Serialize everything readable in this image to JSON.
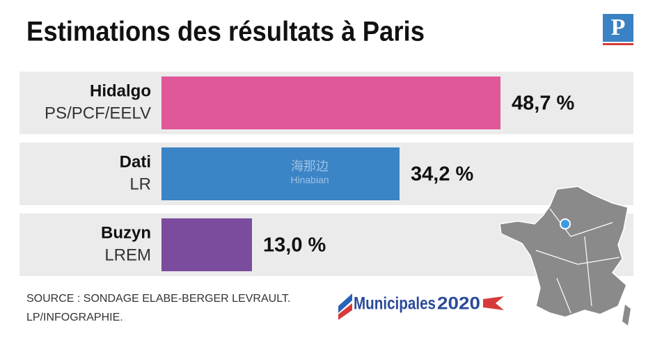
{
  "chart_data": {
    "type": "hbar",
    "title": "Estimations des résultats à Paris",
    "categories": [
      "Hidalgo",
      "Dati",
      "Buzyn"
    ],
    "parties": [
      "PS/PCF/EELV",
      "LR",
      "LREM"
    ],
    "values": [
      48.7,
      34.2,
      13.0
    ],
    "value_labels": [
      "48,7 %",
      "34,2 %",
      "13,0 %"
    ],
    "colors": [
      "#e0579a",
      "#3b84c6",
      "#7b4c9d"
    ],
    "xlim": [
      0,
      70
    ],
    "source": [
      "SOURCE : SONDAGE ELABE-BERGER LEVRAULT.",
      "LP/INFOGRAPHIE."
    ],
    "logo": "P",
    "event_logo": {
      "name": "Municipales",
      "year": "2020"
    },
    "watermark": [
      "海那边",
      "Hinabian"
    ]
  }
}
